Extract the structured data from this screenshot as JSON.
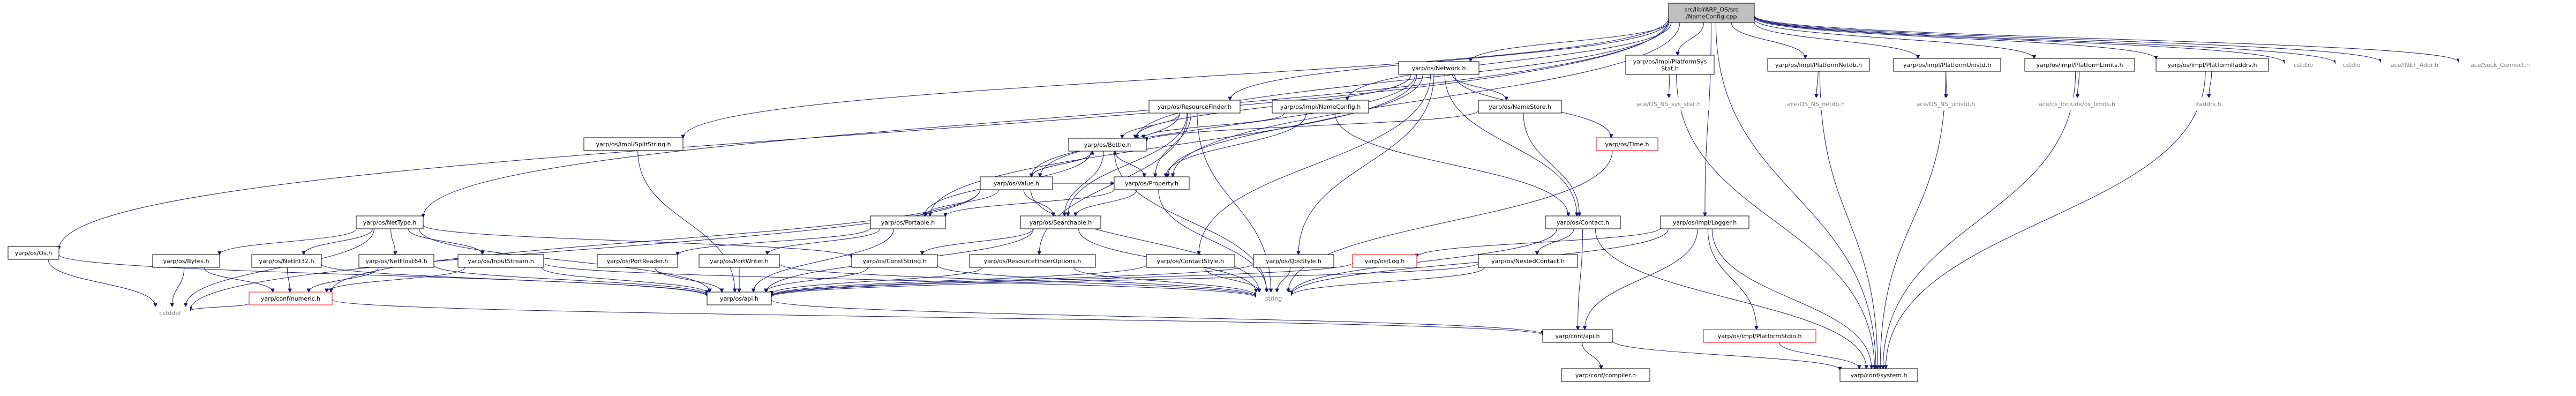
{
  "graph": {
    "edge_color": "#191970",
    "root_fill": "#bfbfbf",
    "missing_border_color": "#ff0000",
    "nodes": [
      {
        "id": "root",
        "lines": [
          "src/libYARP_OS/src",
          "/NameConfig.cpp"
        ],
        "style": "root"
      },
      {
        "id": "os_h",
        "lines": [
          "yarp/os/Os.h"
        ],
        "style": "box"
      },
      {
        "id": "nettype",
        "lines": [
          "yarp/os/NetType.h"
        ],
        "style": "box"
      },
      {
        "id": "splitstring",
        "lines": [
          "yarp/os/impl/SplitString.h"
        ],
        "style": "box"
      },
      {
        "id": "resourcefinder",
        "lines": [
          "yarp/os/ResourceFinder.h"
        ],
        "style": "box"
      },
      {
        "id": "network",
        "lines": [
          "yarp/os/Network.h"
        ],
        "style": "box"
      },
      {
        "id": "nameconfig",
        "lines": [
          "yarp/os/impl/NameConfig.h"
        ],
        "style": "box"
      },
      {
        "id": "namestore",
        "lines": [
          "yarp/os/NameStore.h"
        ],
        "style": "box"
      },
      {
        "id": "time",
        "lines": [
          "yarp/os/Time.h"
        ],
        "style": "red"
      },
      {
        "id": "platformsysstat",
        "lines": [
          "yarp/os/impl/PlatformSys",
          "Stat.h"
        ],
        "style": "box"
      },
      {
        "id": "platformnetdb",
        "lines": [
          "yarp/os/impl/PlatformNetdb.h"
        ],
        "style": "box"
      },
      {
        "id": "platformunistd",
        "lines": [
          "yarp/os/impl/PlatformUnistd.h"
        ],
        "style": "box"
      },
      {
        "id": "platformlimits",
        "lines": [
          "yarp/os/impl/PlatformLimits.h"
        ],
        "style": "box"
      },
      {
        "id": "platformifaddrs",
        "lines": [
          "yarp/os/impl/PlatformIfaddrs.h"
        ],
        "style": "box"
      },
      {
        "id": "cstdlib",
        "lines": [
          "cstdlib"
        ],
        "style": "plain"
      },
      {
        "id": "cstdio",
        "lines": [
          "cstdio"
        ],
        "style": "plain"
      },
      {
        "id": "inet_addr",
        "lines": [
          "ace/INET_Addr.h"
        ],
        "style": "plain"
      },
      {
        "id": "sock_connect",
        "lines": [
          "ace/Sock_Connect.h"
        ],
        "style": "plain"
      },
      {
        "id": "ace_sys_stat",
        "lines": [
          "ace/OS_NS_sys_stat.h"
        ],
        "style": "plain"
      },
      {
        "id": "ace_netdb",
        "lines": [
          "ace/OS_NS_netdb.h"
        ],
        "style": "plain"
      },
      {
        "id": "ace_unistd",
        "lines": [
          "ace/OS_NS_unistd.h"
        ],
        "style": "plain"
      },
      {
        "id": "ace_limits",
        "lines": [
          "ace/os_include/os_limits.h"
        ],
        "style": "plain"
      },
      {
        "id": "ifaddrs",
        "lines": [
          "ifaddrs.h"
        ],
        "style": "plain"
      },
      {
        "id": "bottle",
        "lines": [
          "yarp/os/Bottle.h"
        ],
        "style": "box"
      },
      {
        "id": "property",
        "lines": [
          "yarp/os/Property.h"
        ],
        "style": "box"
      },
      {
        "id": "value",
        "lines": [
          "yarp/os/Value.h"
        ],
        "style": "box"
      },
      {
        "id": "portable",
        "lines": [
          "yarp/os/Portable.h"
        ],
        "style": "box"
      },
      {
        "id": "searchable",
        "lines": [
          "yarp/os/Searchable.h"
        ],
        "style": "box"
      },
      {
        "id": "contact",
        "lines": [
          "yarp/os/Contact.h"
        ],
        "style": "box"
      },
      {
        "id": "logger",
        "lines": [
          "yarp/os/impl/Logger.h"
        ],
        "style": "box"
      },
      {
        "id": "bytes",
        "lines": [
          "yarp/os/Bytes.h"
        ],
        "style": "box"
      },
      {
        "id": "netint32",
        "lines": [
          "yarp/os/NetInt32.h"
        ],
        "style": "box"
      },
      {
        "id": "netfloat64",
        "lines": [
          "yarp/os/NetFloat64.h"
        ],
        "style": "box"
      },
      {
        "id": "inputstream",
        "lines": [
          "yarp/os/InputStream.h"
        ],
        "style": "box"
      },
      {
        "id": "portreader",
        "lines": [
          "yarp/os/PortReader.h"
        ],
        "style": "box"
      },
      {
        "id": "portwriter",
        "lines": [
          "yarp/os/PortWriter.h"
        ],
        "style": "box"
      },
      {
        "id": "conststring",
        "lines": [
          "yarp/os/ConstString.h"
        ],
        "style": "box"
      },
      {
        "id": "rfoptions",
        "lines": [
          "yarp/os/ResourceFinderOptions.h"
        ],
        "style": "box"
      },
      {
        "id": "contactstyle",
        "lines": [
          "yarp/os/ContactStyle.h"
        ],
        "style": "box"
      },
      {
        "id": "qosstyle",
        "lines": [
          "yarp/os/QosStyle.h"
        ],
        "style": "box"
      },
      {
        "id": "log",
        "lines": [
          "yarp/os/Log.h"
        ],
        "style": "red"
      },
      {
        "id": "nestedcontact",
        "lines": [
          "yarp/os/NestedContact.h"
        ],
        "style": "box"
      },
      {
        "id": "numeric",
        "lines": [
          "yarp/conf/numeric.h"
        ],
        "style": "red"
      },
      {
        "id": "api",
        "lines": [
          "yarp/os/api.h"
        ],
        "style": "box"
      },
      {
        "id": "string",
        "lines": [
          "string"
        ],
        "style": "plain"
      },
      {
        "id": "cstddef",
        "lines": [
          "cstddef"
        ],
        "style": "plain"
      },
      {
        "id": "platformstdio",
        "lines": [
          "yarp/os/impl/PlatformStdio.h"
        ],
        "style": "red"
      },
      {
        "id": "confapi",
        "lines": [
          "yarp/conf/api.h"
        ],
        "style": "box"
      },
      {
        "id": "compiler",
        "lines": [
          "yarp/conf/compiler.h"
        ],
        "style": "box"
      },
      {
        "id": "system",
        "lines": [
          "yarp/conf/system.h"
        ],
        "style": "box"
      }
    ],
    "edges": [
      [
        "root",
        "os_h"
      ],
      [
        "root",
        "nettype"
      ],
      [
        "root",
        "splitstring"
      ],
      [
        "root",
        "resourcefinder"
      ],
      [
        "root",
        "network"
      ],
      [
        "root",
        "nameconfig"
      ],
      [
        "root",
        "platformsysstat"
      ],
      [
        "root",
        "platformnetdb"
      ],
      [
        "root",
        "platformunistd"
      ],
      [
        "root",
        "platformlimits"
      ],
      [
        "root",
        "platformifaddrs"
      ],
      [
        "root",
        "cstdlib"
      ],
      [
        "root",
        "cstdio"
      ],
      [
        "root",
        "inet_addr"
      ],
      [
        "root",
        "sock_connect"
      ],
      [
        "root",
        "logger"
      ],
      [
        "root",
        "system"
      ],
      [
        "root",
        "bottle"
      ],
      [
        "root",
        "property"
      ],
      [
        "os_h",
        "api"
      ],
      [
        "os_h",
        "cstddef"
      ],
      [
        "nettype",
        "bytes"
      ],
      [
        "nettype",
        "netint32"
      ],
      [
        "nettype",
        "netfloat64"
      ],
      [
        "nettype",
        "inputstream"
      ],
      [
        "nettype",
        "conststring"
      ],
      [
        "nettype",
        "api"
      ],
      [
        "nettype",
        "cstddef"
      ],
      [
        "splitstring",
        "api"
      ],
      [
        "resourcefinder",
        "value"
      ],
      [
        "resourcefinder",
        "bottle"
      ],
      [
        "resourcefinder",
        "property"
      ],
      [
        "resourcefinder",
        "searchable"
      ],
      [
        "resourcefinder",
        "rfoptions"
      ],
      [
        "resourcefinder",
        "string"
      ],
      [
        "network",
        "portable"
      ],
      [
        "network",
        "value"
      ],
      [
        "network",
        "bottle"
      ],
      [
        "network",
        "property"
      ],
      [
        "network",
        "namestore"
      ],
      [
        "network",
        "time"
      ],
      [
        "network",
        "contact"
      ],
      [
        "network",
        "contactstyle"
      ],
      [
        "network",
        "qosstyle"
      ],
      [
        "nameconfig",
        "bottle"
      ],
      [
        "nameconfig",
        "property"
      ],
      [
        "nameconfig",
        "contact"
      ],
      [
        "namestore",
        "bottle"
      ],
      [
        "namestore",
        "contact"
      ],
      [
        "time",
        "string"
      ],
      [
        "platformsysstat",
        "ace_sys_stat"
      ],
      [
        "platformsysstat",
        "system"
      ],
      [
        "platformnetdb",
        "ace_netdb"
      ],
      [
        "platformnetdb",
        "system"
      ],
      [
        "platformunistd",
        "ace_unistd"
      ],
      [
        "platformunistd",
        "system"
      ],
      [
        "platformlimits",
        "ace_limits"
      ],
      [
        "platformlimits",
        "system"
      ],
      [
        "platformifaddrs",
        "ifaddrs"
      ],
      [
        "platformifaddrs",
        "system"
      ],
      [
        "bottle",
        "portable"
      ],
      [
        "bottle",
        "searchable"
      ],
      [
        "bottle",
        "value"
      ],
      [
        "bottle",
        "property"
      ],
      [
        "bottle",
        "string"
      ],
      [
        "property",
        "bottle"
      ],
      [
        "property",
        "portable"
      ],
      [
        "property",
        "searchable"
      ],
      [
        "property",
        "string"
      ],
      [
        "value",
        "portable"
      ],
      [
        "value",
        "searchable"
      ],
      [
        "value",
        "bottle"
      ],
      [
        "value",
        "property"
      ],
      [
        "value",
        "numeric"
      ],
      [
        "value",
        "cstddef"
      ],
      [
        "value",
        "string"
      ],
      [
        "portable",
        "portreader"
      ],
      [
        "portable",
        "portwriter"
      ],
      [
        "portable",
        "api"
      ],
      [
        "searchable",
        "conststring"
      ],
      [
        "searchable",
        "api"
      ],
      [
        "searchable",
        "string"
      ],
      [
        "contact",
        "nestedcontact"
      ],
      [
        "contact",
        "string"
      ],
      [
        "contact",
        "confapi"
      ],
      [
        "contact",
        "system"
      ],
      [
        "logger",
        "log"
      ],
      [
        "logger",
        "platformstdio"
      ],
      [
        "logger",
        "confapi"
      ],
      [
        "logger",
        "string"
      ],
      [
        "logger",
        "system"
      ],
      [
        "bytes",
        "numeric"
      ],
      [
        "bytes",
        "cstddef"
      ],
      [
        "netint32",
        "numeric"
      ],
      [
        "netint32",
        "api"
      ],
      [
        "netfloat64",
        "numeric"
      ],
      [
        "netfloat64",
        "api"
      ],
      [
        "inputstream",
        "numeric"
      ],
      [
        "inputstream",
        "api"
      ],
      [
        "inputstream",
        "string"
      ],
      [
        "portreader",
        "api"
      ],
      [
        "portwriter",
        "api"
      ],
      [
        "portwriter",
        "string"
      ],
      [
        "conststring",
        "api"
      ],
      [
        "conststring",
        "string"
      ],
      [
        "rfoptions",
        "api"
      ],
      [
        "rfoptions",
        "string"
      ],
      [
        "contactstyle",
        "api"
      ],
      [
        "contactstyle",
        "string"
      ],
      [
        "qosstyle",
        "api"
      ],
      [
        "qosstyle",
        "string"
      ],
      [
        "log",
        "api"
      ],
      [
        "nestedcontact",
        "api"
      ],
      [
        "nestedcontact",
        "string"
      ],
      [
        "numeric",
        "confapi"
      ],
      [
        "numeric",
        "cstddef"
      ],
      [
        "api",
        "confapi"
      ],
      [
        "platformstdio",
        "system"
      ],
      [
        "confapi",
        "compiler"
      ],
      [
        "confapi",
        "system"
      ]
    ]
  }
}
